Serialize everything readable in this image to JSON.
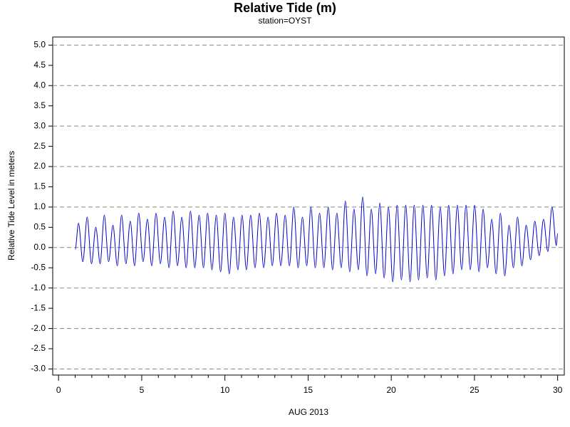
{
  "chart_data": {
    "type": "line",
    "title": "Relative Tide (m)",
    "subtitle": "station=OYST",
    "x_label": "AUG 2013",
    "y_label": "Relative Tide Level in meters",
    "color": "#0000cc",
    "grid": true,
    "xlim": [
      -0.35,
      30.4
    ],
    "ylim": [
      -3.15,
      5.2
    ],
    "xticks": [
      0,
      5,
      10,
      15,
      20,
      25,
      30
    ],
    "yticks": [
      {
        "value": -3,
        "label": "-3.0"
      },
      -2.5,
      {
        "value": -2,
        "label": "-2.0"
      },
      -1.5,
      {
        "value": -1,
        "label": "-1.0"
      },
      -0.5,
      {
        "value": 0,
        "label": "0.0"
      },
      0.5,
      {
        "value": 1,
        "label": "1.0"
      },
      1.5,
      {
        "value": 2,
        "label": "2.0"
      },
      2.5,
      {
        "value": 3,
        "label": "3.0"
      },
      3.5,
      {
        "value": 4,
        "label": "4.0"
      },
      4.5,
      {
        "value": 5,
        "label": "5.0"
      }
    ],
    "x": [
      1.0,
      1.2,
      1.46,
      1.72,
      1.98,
      2.24,
      2.5,
      2.75,
      3.01,
      3.27,
      3.53,
      3.79,
      4.05,
      4.31,
      4.57,
      4.82,
      5.08,
      5.34,
      5.6,
      5.86,
      6.12,
      6.38,
      6.64,
      6.89,
      7.15,
      7.41,
      7.67,
      7.93,
      8.19,
      8.45,
      8.71,
      8.96,
      9.22,
      9.48,
      9.74,
      10.0,
      10.26,
      10.52,
      10.78,
      11.03,
      11.29,
      11.55,
      11.81,
      12.07,
      12.33,
      12.59,
      12.85,
      13.1,
      13.36,
      13.62,
      13.88,
      14.14,
      14.4,
      14.66,
      14.92,
      15.17,
      15.43,
      15.69,
      15.95,
      16.21,
      16.47,
      16.73,
      16.99,
      17.24,
      17.5,
      17.76,
      18.02,
      18.28,
      18.54,
      18.8,
      19.06,
      19.31,
      19.57,
      19.83,
      20.09,
      20.35,
      20.61,
      20.87,
      21.13,
      21.38,
      21.64,
      21.9,
      22.16,
      22.42,
      22.68,
      22.94,
      23.2,
      23.45,
      23.71,
      23.97,
      24.23,
      24.49,
      24.75,
      25.01,
      25.27,
      25.52,
      25.78,
      26.04,
      26.3,
      26.56,
      26.82,
      27.08,
      27.34,
      27.59,
      27.85,
      28.11,
      28.37,
      28.63,
      28.89,
      29.15,
      29.41,
      29.66,
      29.92,
      30.0
    ],
    "values": [
      -0.05,
      0.6,
      -0.35,
      0.75,
      -0.4,
      0.5,
      -0.4,
      0.8,
      -0.35,
      0.55,
      -0.45,
      0.8,
      -0.4,
      0.65,
      -0.45,
      0.85,
      -0.35,
      0.7,
      -0.45,
      0.85,
      -0.4,
      0.75,
      -0.5,
      0.9,
      -0.45,
      0.75,
      -0.5,
      0.9,
      -0.5,
      0.8,
      -0.5,
      0.85,
      -0.55,
      0.8,
      -0.6,
      0.85,
      -0.65,
      0.75,
      -0.55,
      0.8,
      -0.55,
      0.8,
      -0.5,
      0.85,
      -0.5,
      0.75,
      -0.45,
      0.85,
      -0.45,
      0.8,
      -0.45,
      1.0,
      -0.5,
      0.75,
      -0.45,
      1.0,
      -0.5,
      0.85,
      -0.5,
      1.0,
      -0.55,
      0.85,
      -0.5,
      1.15,
      -0.6,
      0.95,
      -0.55,
      1.25,
      -0.7,
      0.95,
      -0.65,
      1.1,
      -0.75,
      1.0,
      -0.85,
      1.05,
      -0.8,
      1.05,
      -0.85,
      1.05,
      -0.8,
      1.05,
      -0.75,
      1.05,
      -0.8,
      1.0,
      -0.7,
      1.05,
      -0.65,
      1.05,
      -0.55,
      1.05,
      -0.55,
      1.05,
      -0.6,
      0.95,
      -0.5,
      0.7,
      -0.65,
      0.85,
      -0.7,
      0.55,
      -0.5,
      0.75,
      -0.45,
      0.55,
      -0.3,
      0.65,
      -0.2,
      0.7,
      -0.1,
      1.0,
      0.05,
      0.35
    ]
  }
}
